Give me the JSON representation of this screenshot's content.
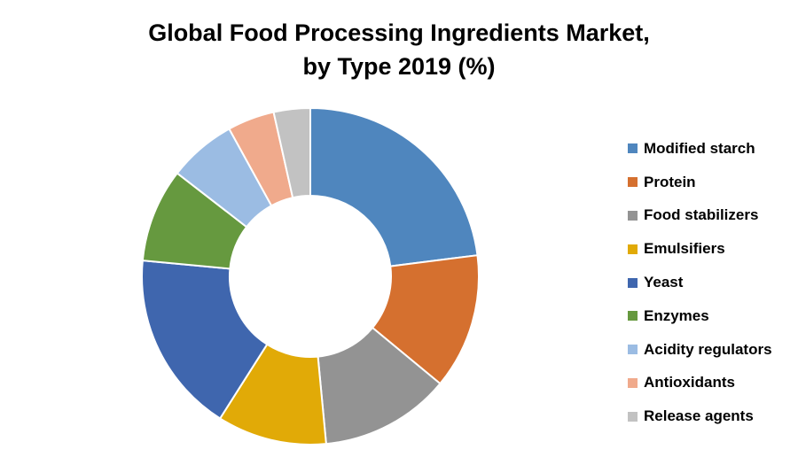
{
  "chart_data": {
    "type": "pie",
    "variant": "donut",
    "title_lines": [
      "Global Food Processing Ingredients Market,",
      "by Type 2019 (%)"
    ],
    "legend_position": "right",
    "slices": [
      {
        "label": "Modified starch",
        "value": 23,
        "color": "#4F86BE"
      },
      {
        "label": "Protein",
        "value": 13,
        "color": "#D5702F"
      },
      {
        "label": "Food stabilizers",
        "value": 12.5,
        "color": "#939393"
      },
      {
        "label": "Emulsifiers",
        "value": 10.5,
        "color": "#E1AA07"
      },
      {
        "label": "Yeast",
        "value": 17.5,
        "color": "#3F66AE"
      },
      {
        "label": "Enzymes",
        "value": 9,
        "color": "#66993F"
      },
      {
        "label": "Acidity regulators",
        "value": 6.5,
        "color": "#9BBCE3"
      },
      {
        "label": "Antioxidants",
        "value": 4.5,
        "color": "#F0AA8C"
      },
      {
        "label": "Release agents",
        "value": 3.5,
        "color": "#C2C2C2"
      }
    ]
  }
}
